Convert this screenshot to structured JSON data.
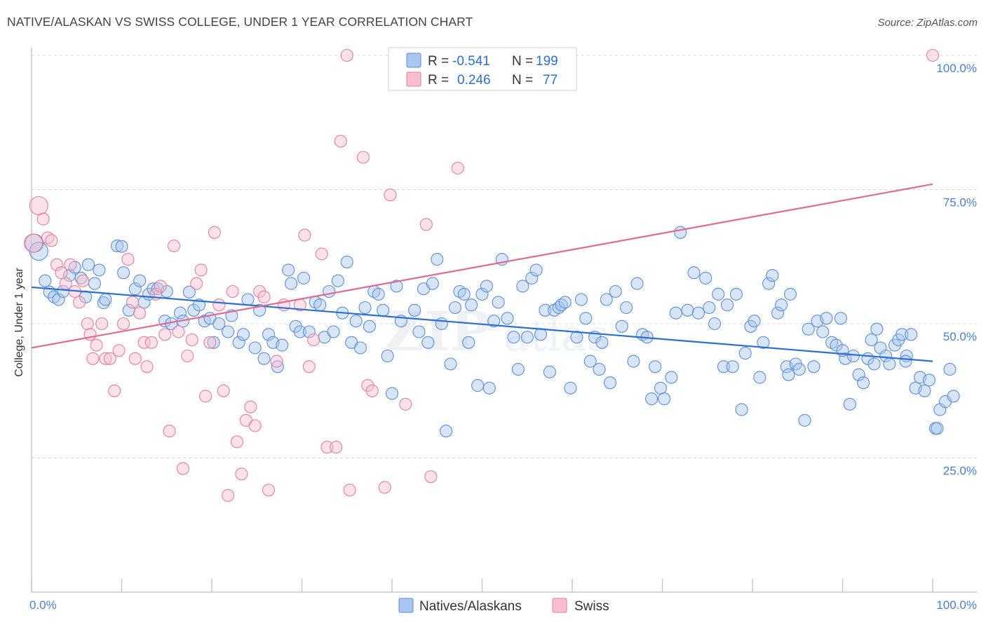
{
  "title": "NATIVE/ALASKAN VS SWISS COLLEGE, UNDER 1 YEAR CORRELATION CHART",
  "source": "Source: ZipAtlas.com",
  "watermark": {
    "zip": "ZIP",
    "atlas": "atlas"
  },
  "colors": {
    "blue_fill": "#a9c6ee",
    "blue_stroke": "#5b8fd6",
    "blue_line": "#2c6fd1",
    "pink_fill": "#f7bfd0",
    "pink_stroke": "#e37fa0",
    "pink_line": "#e06a93",
    "tick_text": "#4a7fd0",
    "legend_text_dark": "#333333"
  },
  "stats": {
    "r_label": "R =",
    "n_label": "N =",
    "series": [
      {
        "r": "-0.541",
        "n": "199"
      },
      {
        "r": "0.246",
        "n": "77"
      }
    ]
  },
  "chart_data": {
    "type": "scatter",
    "xlabel": "",
    "ylabel": "College, Under 1 year",
    "xlim": [
      0,
      100
    ],
    "ylim": [
      0,
      100
    ],
    "x_tick_labels": [
      "0.0%",
      "100.0%"
    ],
    "y_tick_labels": [
      "25.0%",
      "50.0%",
      "75.0%",
      "100.0%"
    ],
    "y_tick_values": [
      25,
      50,
      75,
      100
    ],
    "grid": true,
    "legend": [
      "Natives/Alaskans",
      "Swiss"
    ],
    "series": [
      {
        "name": "Natives/Alaskans",
        "trend": [
          [
            0,
            56.8
          ],
          [
            100,
            43.0
          ]
        ],
        "points": [
          [
            0.3,
            65.0
          ],
          [
            0.8,
            63.5
          ],
          [
            1.5,
            58.0
          ],
          [
            2.0,
            55.9
          ],
          [
            2.5,
            55.0
          ],
          [
            3.0,
            54.5
          ],
          [
            3.5,
            56.0
          ],
          [
            4.2,
            59.0
          ],
          [
            4.8,
            60.5
          ],
          [
            5.5,
            58.5
          ],
          [
            6.0,
            55.0
          ],
          [
            6.3,
            61.0
          ],
          [
            7.0,
            57.5
          ],
          [
            7.5,
            60.0
          ],
          [
            8.0,
            53.9
          ],
          [
            8.2,
            54.5
          ],
          [
            9.5,
            64.5
          ],
          [
            10.0,
            64.4
          ],
          [
            10.2,
            59.5
          ],
          [
            10.8,
            52.5
          ],
          [
            11.5,
            56.5
          ],
          [
            12.0,
            58.0
          ],
          [
            12.5,
            54.0
          ],
          [
            13.0,
            55.5
          ],
          [
            13.5,
            56.5
          ],
          [
            14.0,
            56.5
          ],
          [
            15.0,
            56.0
          ],
          [
            14.8,
            50.5
          ],
          [
            15.5,
            50.0
          ],
          [
            16.5,
            52.0
          ],
          [
            16.8,
            50.5
          ],
          [
            17.5,
            55.9
          ],
          [
            18.0,
            52.5
          ],
          [
            18.6,
            53.5
          ],
          [
            19.2,
            50.5
          ],
          [
            19.8,
            51.0
          ],
          [
            20.2,
            46.5
          ],
          [
            20.8,
            50.0
          ],
          [
            21.8,
            48.5
          ],
          [
            22.2,
            51.5
          ],
          [
            23.0,
            46.5
          ],
          [
            23.5,
            48.0
          ],
          [
            24.0,
            54.5
          ],
          [
            24.8,
            45.5
          ],
          [
            25.3,
            52.5
          ],
          [
            25.8,
            43.5
          ],
          [
            26.3,
            48.0
          ],
          [
            26.8,
            46.5
          ],
          [
            27.3,
            42.0
          ],
          [
            27.8,
            46.0
          ],
          [
            28.5,
            60.0
          ],
          [
            28.8,
            57.5
          ],
          [
            29.3,
            49.5
          ],
          [
            29.8,
            48.5
          ],
          [
            30.2,
            58.5
          ],
          [
            30.8,
            48.5
          ],
          [
            31.5,
            54.0
          ],
          [
            32.0,
            53.5
          ],
          [
            32.5,
            47.5
          ],
          [
            33.0,
            56.0
          ],
          [
            33.5,
            48.5
          ],
          [
            34.0,
            58.0
          ],
          [
            34.5,
            52.0
          ],
          [
            35.0,
            61.5
          ],
          [
            35.5,
            46.5
          ],
          [
            36.0,
            50.5
          ],
          [
            36.5,
            45.5
          ],
          [
            37.0,
            53.0
          ],
          [
            37.5,
            49.5
          ],
          [
            38.0,
            56.0
          ],
          [
            38.5,
            55.5
          ],
          [
            39.0,
            52.5
          ],
          [
            39.5,
            44.0
          ],
          [
            40.0,
            37.0
          ],
          [
            40.5,
            57.0
          ],
          [
            41.0,
            50.5
          ],
          [
            42.5,
            52.5
          ],
          [
            43.0,
            48.5
          ],
          [
            43.5,
            56.5
          ],
          [
            44.0,
            46.5
          ],
          [
            44.5,
            57.5
          ],
          [
            45.0,
            62.0
          ],
          [
            45.5,
            50.0
          ],
          [
            46.0,
            30.0
          ],
          [
            46.5,
            42.5
          ],
          [
            47.0,
            53.0
          ],
          [
            47.5,
            56.0
          ],
          [
            48.0,
            55.5
          ],
          [
            48.5,
            46.5
          ],
          [
            48.8,
            53.5
          ],
          [
            49.5,
            38.5
          ],
          [
            50.0,
            55.5
          ],
          [
            50.5,
            57.0
          ],
          [
            50.8,
            38.0
          ],
          [
            51.3,
            50.5
          ],
          [
            51.8,
            54.0
          ],
          [
            52.2,
            62.0
          ],
          [
            52.8,
            51.0
          ],
          [
            53.5,
            47.5
          ],
          [
            54.0,
            41.5
          ],
          [
            54.5,
            57.0
          ],
          [
            55.0,
            47.5
          ],
          [
            55.5,
            58.5
          ],
          [
            56.0,
            60.0
          ],
          [
            56.5,
            48.0
          ],
          [
            57.0,
            52.5
          ],
          [
            57.5,
            41.0
          ],
          [
            58.0,
            52.5
          ],
          [
            58.5,
            53.0
          ],
          [
            58.8,
            53.5
          ],
          [
            59.2,
            54.0
          ],
          [
            59.8,
            38.0
          ],
          [
            60.5,
            47.5
          ],
          [
            61.0,
            54.5
          ],
          [
            61.5,
            51.0
          ],
          [
            62.0,
            43.0
          ],
          [
            62.5,
            47.5
          ],
          [
            63.0,
            41.5
          ],
          [
            63.3,
            46.5
          ],
          [
            63.8,
            54.5
          ],
          [
            64.2,
            39.0
          ],
          [
            64.8,
            56.0
          ],
          [
            65.5,
            49.5
          ],
          [
            66.0,
            53.0
          ],
          [
            66.8,
            43.0
          ],
          [
            67.2,
            57.5
          ],
          [
            67.8,
            48.0
          ],
          [
            68.3,
            47.5
          ],
          [
            68.8,
            36.0
          ],
          [
            69.2,
            42.0
          ],
          [
            69.8,
            38.0
          ],
          [
            70.2,
            36.0
          ],
          [
            71.0,
            40.0
          ],
          [
            71.5,
            52.0
          ],
          [
            72.0,
            67.0
          ],
          [
            72.8,
            52.5
          ],
          [
            73.5,
            59.5
          ],
          [
            74.0,
            52.0
          ],
          [
            74.8,
            58.5
          ],
          [
            75.2,
            53.0
          ],
          [
            75.8,
            50.0
          ],
          [
            76.2,
            55.5
          ],
          [
            76.8,
            42.0
          ],
          [
            77.2,
            53.5
          ],
          [
            77.8,
            42.0
          ],
          [
            78.2,
            55.5
          ],
          [
            78.8,
            34.0
          ],
          [
            79.2,
            44.5
          ],
          [
            79.8,
            49.5
          ],
          [
            80.2,
            50.5
          ],
          [
            80.8,
            40.0
          ],
          [
            81.2,
            46.5
          ],
          [
            81.8,
            57.5
          ],
          [
            82.2,
            59.0
          ],
          [
            82.8,
            52.0
          ],
          [
            83.2,
            53.5
          ],
          [
            83.8,
            42.0
          ],
          [
            84.2,
            55.5
          ],
          [
            84.8,
            42.5
          ],
          [
            85.2,
            41.5
          ],
          [
            85.8,
            32.0
          ],
          [
            86.2,
            49.0
          ],
          [
            86.8,
            42.0
          ],
          [
            87.2,
            50.5
          ],
          [
            87.8,
            48.5
          ],
          [
            88.2,
            51.0
          ],
          [
            88.8,
            46.5
          ],
          [
            89.3,
            46.0
          ],
          [
            89.8,
            51.0
          ],
          [
            90.3,
            43.5
          ],
          [
            90.8,
            35.0
          ],
          [
            91.2,
            44.0
          ],
          [
            91.8,
            40.5
          ],
          [
            92.3,
            39.0
          ],
          [
            92.8,
            43.5
          ],
          [
            93.2,
            47.0
          ],
          [
            93.8,
            49.0
          ],
          [
            94.2,
            45.5
          ],
          [
            94.8,
            44.0
          ],
          [
            95.2,
            42.5
          ],
          [
            95.8,
            46.0
          ],
          [
            96.2,
            47.0
          ],
          [
            96.6,
            48.0
          ],
          [
            97.1,
            44.0
          ],
          [
            97.6,
            48.0
          ],
          [
            98.1,
            38.0
          ],
          [
            98.6,
            40.0
          ],
          [
            99.1,
            37.5
          ],
          [
            99.6,
            39.5
          ],
          [
            100.3,
            30.5
          ],
          [
            100.8,
            34.0
          ],
          [
            101.4,
            35.5
          ],
          [
            101.9,
            41.5
          ],
          [
            102.3,
            36.5
          ],
          [
            97.0,
            43.0
          ],
          [
            93.5,
            42.5
          ],
          [
            90.0,
            45.0
          ],
          [
            84.0,
            40.5
          ],
          [
            100.5,
            30.5
          ]
        ]
      },
      {
        "name": "Swiss",
        "trend": [
          [
            0,
            45.5
          ],
          [
            100,
            76.0
          ]
        ],
        "points": [
          [
            0.2,
            65.0
          ],
          [
            0.8,
            72.0
          ],
          [
            1.3,
            69.5
          ],
          [
            1.8,
            66.0
          ],
          [
            2.2,
            65.5
          ],
          [
            2.8,
            61.0
          ],
          [
            3.3,
            59.5
          ],
          [
            3.8,
            57.5
          ],
          [
            4.3,
            61.0
          ],
          [
            4.8,
            56.0
          ],
          [
            5.3,
            54.0
          ],
          [
            5.7,
            58.0
          ],
          [
            6.2,
            50.0
          ],
          [
            6.5,
            48.0
          ],
          [
            6.8,
            43.5
          ],
          [
            7.2,
            46.0
          ],
          [
            7.8,
            50.0
          ],
          [
            8.2,
            43.5
          ],
          [
            8.7,
            43.5
          ],
          [
            9.2,
            37.5
          ],
          [
            9.7,
            45.0
          ],
          [
            10.2,
            50.0
          ],
          [
            10.7,
            62.0
          ],
          [
            11.2,
            54.0
          ],
          [
            12.0,
            52.0
          ],
          [
            12.5,
            46.5
          ],
          [
            12.8,
            42.0
          ],
          [
            13.3,
            46.5
          ],
          [
            13.8,
            55.5
          ],
          [
            14.3,
            57.0
          ],
          [
            14.8,
            48.0
          ],
          [
            15.3,
            30.0
          ],
          [
            15.8,
            64.5
          ],
          [
            16.3,
            48.5
          ],
          [
            16.8,
            23.0
          ],
          [
            17.3,
            44.0
          ],
          [
            17.8,
            47.0
          ],
          [
            18.3,
            57.5
          ],
          [
            18.8,
            60.0
          ],
          [
            19.3,
            36.5
          ],
          [
            19.8,
            46.5
          ],
          [
            20.3,
            67.0
          ],
          [
            20.8,
            53.5
          ],
          [
            21.3,
            37.5
          ],
          [
            21.8,
            18.0
          ],
          [
            22.3,
            56.0
          ],
          [
            22.8,
            28.0
          ],
          [
            23.3,
            22.0
          ],
          [
            23.8,
            32.0
          ],
          [
            24.3,
            34.5
          ],
          [
            24.8,
            31.0
          ],
          [
            25.3,
            56.0
          ],
          [
            25.8,
            55.0
          ],
          [
            26.3,
            19.0
          ],
          [
            27.2,
            43.0
          ],
          [
            28.0,
            53.5
          ],
          [
            29.8,
            53.5
          ],
          [
            30.3,
            66.5
          ],
          [
            30.8,
            42.0
          ],
          [
            31.3,
            47.0
          ],
          [
            32.2,
            63.0
          ],
          [
            32.8,
            27.0
          ],
          [
            33.8,
            27.0
          ],
          [
            34.3,
            84.0
          ],
          [
            35.0,
            100.0
          ],
          [
            35.3,
            19.0
          ],
          [
            36.8,
            81.0
          ],
          [
            37.3,
            38.5
          ],
          [
            37.8,
            37.5
          ],
          [
            39.2,
            19.5
          ],
          [
            39.8,
            74.0
          ],
          [
            41.5,
            35.0
          ],
          [
            43.8,
            68.5
          ],
          [
            44.3,
            21.5
          ],
          [
            47.3,
            79.0
          ],
          [
            100.0,
            100.0
          ],
          [
            11.5,
            43.5
          ]
        ]
      }
    ]
  }
}
